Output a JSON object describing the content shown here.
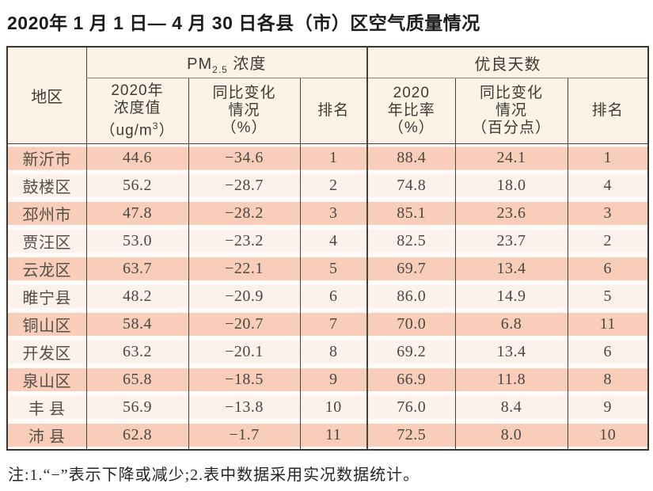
{
  "title": "2020年 1 月 1 日— 4 月 30 日各县（市）区空气质量情况",
  "note": "注:1.“−”表示下降或减少;2.表中数据采用实况数据统计。",
  "colors": {
    "row_band_strong": "#f8cdb9",
    "row_band_light": "#fdf1ec",
    "header_bg": "#fcf2e5",
    "border_dark": "#38342e",
    "title_text": "#1c1c1c"
  },
  "table": {
    "region_header": "地区",
    "pm_group": {
      "prefix": "PM",
      "sub": "2.5",
      "suffix": " 浓度"
    },
    "good_group": "优良天数",
    "pm_cols": {
      "value": {
        "l1": "2020年",
        "l2": "浓度值",
        "l3_pre": "（ug/m",
        "l3_sup": "3",
        "l3_post": "）"
      },
      "change": {
        "l1": "同比变化",
        "l2": "情况",
        "l3": "（%）"
      },
      "rank": "排名"
    },
    "good_cols": {
      "rate": {
        "l1": "2020",
        "l2": "年比率",
        "l3": "（%）"
      },
      "change": {
        "l1": "同比变化",
        "l2": "情况",
        "l3": "（百分点）"
      },
      "rank": "排名"
    },
    "rows": [
      {
        "region": "新沂市",
        "pm_value": "44.6",
        "pm_change": "−34.6",
        "pm_rank": "1",
        "good_rate": "88.4",
        "good_change": "24.1",
        "good_rank": "1"
      },
      {
        "region": "鼓楼区",
        "pm_value": "56.2",
        "pm_change": "−28.7",
        "pm_rank": "2",
        "good_rate": "74.8",
        "good_change": "18.0",
        "good_rank": "4"
      },
      {
        "region": "邳州市",
        "pm_value": "47.8",
        "pm_change": "−28.2",
        "pm_rank": "3",
        "good_rate": "85.1",
        "good_change": "23.6",
        "good_rank": "3"
      },
      {
        "region": "贾汪区",
        "pm_value": "53.0",
        "pm_change": "−23.2",
        "pm_rank": "4",
        "good_rate": "82.5",
        "good_change": "23.7",
        "good_rank": "2"
      },
      {
        "region": "云龙区",
        "pm_value": "63.7",
        "pm_change": "−22.1",
        "pm_rank": "5",
        "good_rate": "69.7",
        "good_change": "13.4",
        "good_rank": "6"
      },
      {
        "region": "睢宁县",
        "pm_value": "48.2",
        "pm_change": "−20.9",
        "pm_rank": "6",
        "good_rate": "86.0",
        "good_change": "14.9",
        "good_rank": "5"
      },
      {
        "region": "铜山区",
        "pm_value": "58.4",
        "pm_change": "−20.7",
        "pm_rank": "7",
        "good_rate": "70.0",
        "good_change": "6.8",
        "good_rank": "11"
      },
      {
        "region": "开发区",
        "pm_value": "63.2",
        "pm_change": "−20.1",
        "pm_rank": "8",
        "good_rate": "69.2",
        "good_change": "13.4",
        "good_rank": "6"
      },
      {
        "region": "泉山区",
        "pm_value": "65.8",
        "pm_change": "−18.5",
        "pm_rank": "9",
        "good_rate": "66.9",
        "good_change": "11.8",
        "good_rank": "8"
      },
      {
        "region": "丰 县",
        "pm_value": "56.9",
        "pm_change": "−13.8",
        "pm_rank": "10",
        "good_rate": "76.0",
        "good_change": "8.4",
        "good_rank": "9"
      },
      {
        "region": "沛 县",
        "pm_value": "62.8",
        "pm_change": "−1.7",
        "pm_rank": "11",
        "good_rate": "72.5",
        "good_change": "8.0",
        "good_rank": "10"
      }
    ]
  }
}
